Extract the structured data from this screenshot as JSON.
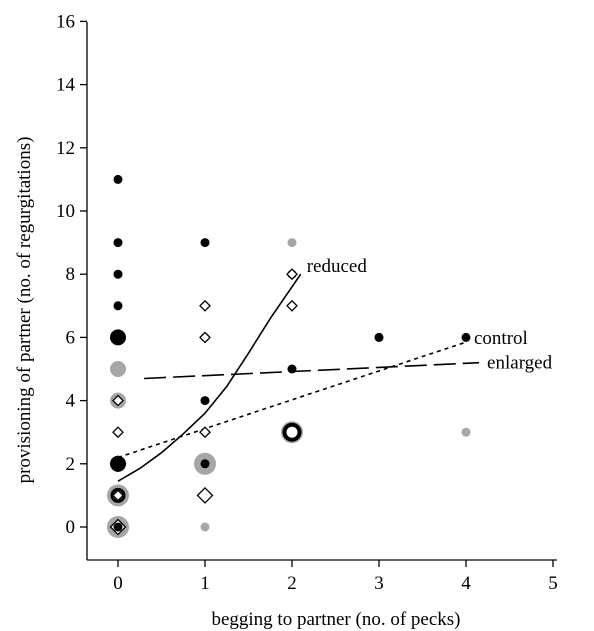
{
  "chart_data": {
    "type": "scatter",
    "title": "",
    "xlabel": "begging to partner (no. of pecks)",
    "ylabel": "provisioning of partner (no. of regurgitations)",
    "xlim": [
      -0.35,
      5.2
    ],
    "ylim": [
      -1,
      16
    ],
    "xticks": [
      "0",
      "1",
      "2",
      "3",
      "4",
      "5"
    ],
    "yticks": [
      "0",
      "2",
      "4",
      "6",
      "8",
      "10",
      "12",
      "14",
      "16"
    ],
    "grid": false,
    "colors": {
      "black": "#000000",
      "grey": "#a6a6a6",
      "white": "#ffffff"
    },
    "points": [
      {
        "x": 0,
        "y": 11,
        "marker": "filled-circle",
        "color": "black",
        "size": 1
      },
      {
        "x": 0,
        "y": 9,
        "marker": "filled-circle",
        "color": "black",
        "size": 1
      },
      {
        "x": 0,
        "y": 8,
        "marker": "filled-circle",
        "color": "grey",
        "size": 1
      },
      {
        "x": 0,
        "y": 8,
        "marker": "filled-circle",
        "color": "black",
        "size": 1
      },
      {
        "x": 0,
        "y": 7,
        "marker": "filled-circle",
        "color": "black",
        "size": 1
      },
      {
        "x": 0,
        "y": 6,
        "marker": "filled-circle",
        "color": "black",
        "size": 2
      },
      {
        "x": 0,
        "y": 5,
        "marker": "filled-circle",
        "color": "grey",
        "size": 2
      },
      {
        "x": 0,
        "y": 4,
        "marker": "filled-circle",
        "color": "grey",
        "size": 2
      },
      {
        "x": 0,
        "y": 4,
        "marker": "diamond",
        "color": "black",
        "size": 1
      },
      {
        "x": 0,
        "y": 3,
        "marker": "diamond",
        "color": "black",
        "size": 1
      },
      {
        "x": 0,
        "y": 2,
        "marker": "diamond",
        "color": "black",
        "size": 2
      },
      {
        "x": 0,
        "y": 2,
        "marker": "filled-circle",
        "color": "black",
        "size": 2
      },
      {
        "x": 0,
        "y": 1,
        "marker": "filled-circle",
        "color": "grey",
        "size": 3
      },
      {
        "x": 0,
        "y": 1,
        "marker": "ring",
        "color": "black",
        "size": 2
      },
      {
        "x": 0,
        "y": 1,
        "marker": "diamond",
        "color": "black",
        "size": 1
      },
      {
        "x": 0,
        "y": 0,
        "marker": "filled-circle",
        "color": "grey",
        "size": 3
      },
      {
        "x": 0,
        "y": 0,
        "marker": "diamond",
        "color": "black",
        "size": 2
      },
      {
        "x": 0,
        "y": 0,
        "marker": "filled-circle",
        "color": "black",
        "size": 1
      },
      {
        "x": 1,
        "y": 9,
        "marker": "filled-circle",
        "color": "black",
        "size": 1
      },
      {
        "x": 1,
        "y": 7,
        "marker": "diamond",
        "color": "black",
        "size": 1
      },
      {
        "x": 1,
        "y": 6,
        "marker": "filled-circle",
        "color": "grey",
        "size": 1
      },
      {
        "x": 1,
        "y": 6,
        "marker": "diamond",
        "color": "black",
        "size": 1
      },
      {
        "x": 1,
        "y": 4,
        "marker": "filled-circle",
        "color": "black",
        "size": 1
      },
      {
        "x": 1,
        "y": 3,
        "marker": "diamond",
        "color": "black",
        "size": 1
      },
      {
        "x": 1,
        "y": 2,
        "marker": "filled-circle",
        "color": "grey",
        "size": 3
      },
      {
        "x": 1,
        "y": 2,
        "marker": "filled-circle",
        "color": "black",
        "size": 1
      },
      {
        "x": 1,
        "y": 1,
        "marker": "diamond",
        "color": "black",
        "size": 2
      },
      {
        "x": 1,
        "y": 0,
        "marker": "filled-circle",
        "color": "grey",
        "size": 1
      },
      {
        "x": 2,
        "y": 9,
        "marker": "filled-circle",
        "color": "grey",
        "size": 1
      },
      {
        "x": 2,
        "y": 8,
        "marker": "filled-circle",
        "color": "black",
        "size": 1
      },
      {
        "x": 2,
        "y": 8,
        "marker": "diamond",
        "color": "black",
        "size": 1
      },
      {
        "x": 2,
        "y": 7,
        "marker": "diamond",
        "color": "black",
        "size": 1
      },
      {
        "x": 2,
        "y": 5,
        "marker": "filled-circle",
        "color": "black",
        "size": 1
      },
      {
        "x": 2,
        "y": 3,
        "marker": "filled-circle",
        "color": "grey",
        "size": 3
      },
      {
        "x": 2,
        "y": 3,
        "marker": "ring",
        "color": "black",
        "size": 3
      },
      {
        "x": 3,
        "y": 6,
        "marker": "filled-circle",
        "color": "grey",
        "size": 1
      },
      {
        "x": 3,
        "y": 6,
        "marker": "filled-circle",
        "color": "black",
        "size": 1
      },
      {
        "x": 4,
        "y": 6,
        "marker": "filled-circle",
        "color": "black",
        "size": 1
      },
      {
        "x": 4,
        "y": 3,
        "marker": "filled-circle",
        "color": "grey",
        "size": 1
      }
    ],
    "series": [
      {
        "name": "reduced",
        "style": "solid",
        "points": [
          [
            0,
            1.45
          ],
          [
            0.25,
            1.85
          ],
          [
            0.5,
            2.35
          ],
          [
            0.75,
            2.95
          ],
          [
            1.0,
            3.6
          ],
          [
            1.25,
            4.45
          ],
          [
            1.5,
            5.5
          ],
          [
            1.75,
            6.6
          ],
          [
            2.1,
            8.0
          ]
        ]
      },
      {
        "name": "control",
        "style": "dotted",
        "points": [
          [
            0,
            2.2
          ],
          [
            4,
            5.85
          ]
        ]
      },
      {
        "name": "enlarged",
        "style": "dashed",
        "points": [
          [
            0.3,
            4.7
          ],
          [
            4.15,
            5.2
          ]
        ]
      }
    ]
  }
}
